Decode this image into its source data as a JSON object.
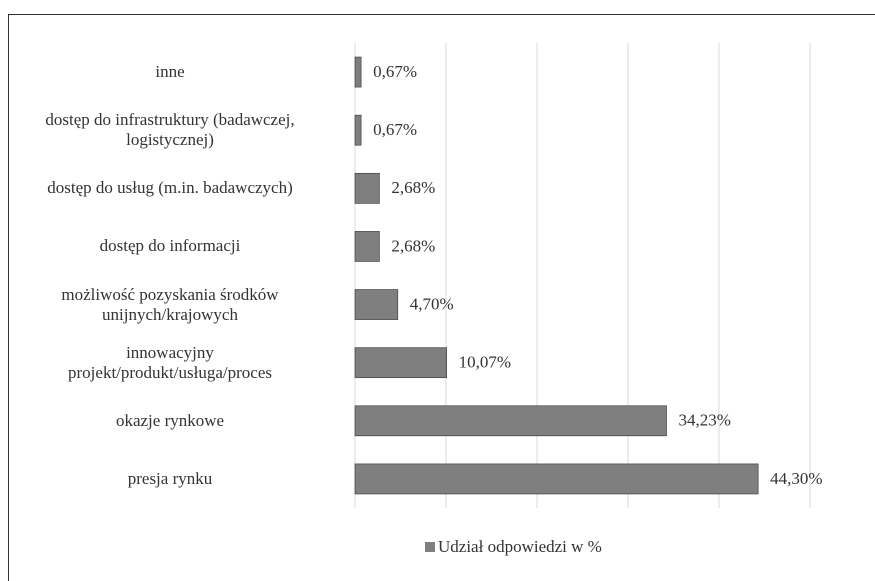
{
  "chart_data": {
    "type": "bar",
    "orientation": "horizontal",
    "categories": [
      "inne",
      "dostęp do infrastruktury (badawczej,\nlogistycznej)",
      "dostęp do usług (m.in. badawczych)",
      "dostęp do informacji",
      "możliwość pozyskania środków\nunijnych/krajowych",
      "innowacyjny\nprojekt/produkt/usługa/proces",
      "okazje rynkowe",
      "presja rynku"
    ],
    "series": [
      {
        "name": "Udział odpowiedzi w %",
        "color": "#7f7f7f",
        "values": [
          0.67,
          0.67,
          2.68,
          2.68,
          4.7,
          10.07,
          34.23,
          44.3
        ],
        "value_labels": [
          "0,67%",
          "0,67%",
          "2,68%",
          "2,68%",
          "4,70%",
          "10,07%",
          "34,23%",
          "44,30%"
        ]
      }
    ],
    "xlim": [
      0,
      50
    ],
    "xticks": [
      0,
      10,
      20,
      30,
      40,
      50
    ],
    "grid": true,
    "legend": "bottom"
  }
}
